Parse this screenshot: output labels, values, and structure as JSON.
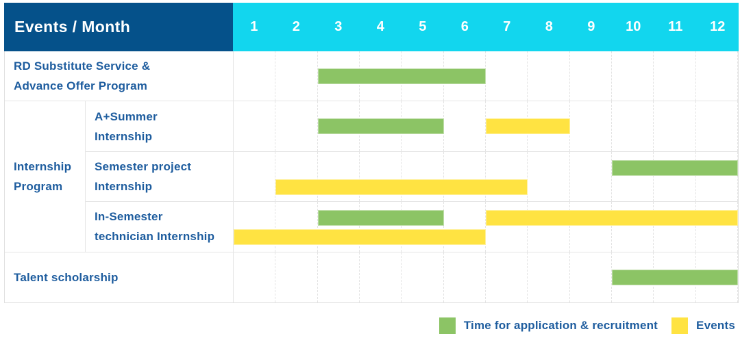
{
  "colors": {
    "header_bg": "#05518a",
    "months_bg": "#12d6ee",
    "header_text": "#ffffff",
    "label_text": "#1d5c9e",
    "bar_green": "#8cc465",
    "bar_yellow": "#ffe342",
    "gridline": "#e3e3e3"
  },
  "header": {
    "title": "Events / Month"
  },
  "chart_data": {
    "type": "table",
    "subtype": "gantt",
    "title": "Events / Month",
    "grid": true,
    "legend_position": "bottom-right",
    "x_axis": {
      "label": "Month",
      "range": [
        1,
        12
      ],
      "ticks": [
        "1",
        "2",
        "3",
        "4",
        "5",
        "6",
        "7",
        "8",
        "9",
        "10",
        "11",
        "12"
      ]
    },
    "series_legend": [
      {
        "key": "application",
        "name": "Time for application & recruitment",
        "color": "#8cc465"
      },
      {
        "key": "events",
        "name": "Events",
        "color": "#ffe342"
      }
    ],
    "rows": [
      {
        "event": "RD Substitute Service & Advance Offer Program",
        "label_lines": [
          "RD Substitute Service &",
          "Advance Offer Program"
        ],
        "group": null,
        "lanes": [
          [
            {
              "series": "application",
              "start_month": 3,
              "end_month": 6
            }
          ]
        ]
      },
      {
        "event": "A+Summer Internship",
        "label_lines": [
          "A+Summer",
          "Internship"
        ],
        "group": "Internship Program",
        "group_label_lines": [
          "Internship",
          "Program"
        ],
        "lanes": [
          [
            {
              "series": "application",
              "start_month": 3,
              "end_month": 5
            },
            {
              "series": "events",
              "start_month": 7,
              "end_month": 8
            }
          ]
        ]
      },
      {
        "event": "Semester project Internship",
        "label_lines": [
          "Semester project",
          "Internship"
        ],
        "group": "Internship Program",
        "lanes": [
          [
            {
              "series": "application",
              "start_month": 10,
              "end_month": 12
            }
          ],
          [
            {
              "series": "events",
              "start_month": 2,
              "end_month": 7
            }
          ]
        ]
      },
      {
        "event": "In-Semester technician Internship",
        "label_lines": [
          "In-Semester",
          "technician Internship"
        ],
        "group": "Internship Program",
        "lanes": [
          [
            {
              "series": "application",
              "start_month": 3,
              "end_month": 5
            },
            {
              "series": "events",
              "start_month": 7,
              "end_month": 12
            }
          ],
          [
            {
              "series": "events",
              "start_month": 1,
              "end_month": 6
            }
          ]
        ]
      },
      {
        "event": "Talent scholarship",
        "label_lines": [
          "Talent scholarship"
        ],
        "group": null,
        "lanes": [
          [
            {
              "series": "application",
              "start_month": 10,
              "end_month": 12
            }
          ]
        ]
      }
    ]
  },
  "legend": {
    "items": [
      {
        "key": "application",
        "label": "Time for application & recruitment",
        "color": "#8cc465"
      },
      {
        "key": "events",
        "label": "Events",
        "color": "#ffe342"
      }
    ]
  }
}
